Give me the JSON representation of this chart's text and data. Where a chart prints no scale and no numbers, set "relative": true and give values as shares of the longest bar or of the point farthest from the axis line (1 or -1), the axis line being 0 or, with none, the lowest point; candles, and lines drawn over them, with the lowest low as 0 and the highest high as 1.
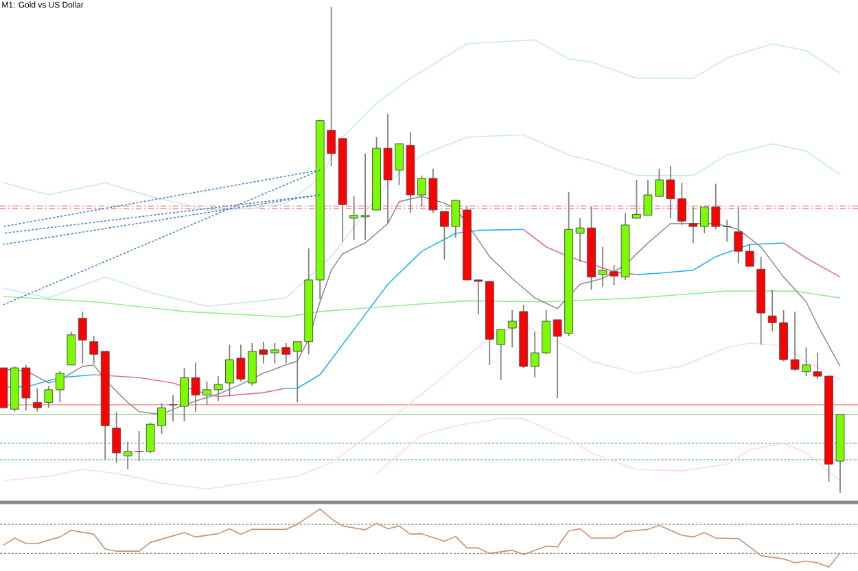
{
  "chart_data": [
    {
      "type": "candlestick",
      "title": "M1: Gold vs US Dollar",
      "relative": true,
      "categories": [
        null,
        null,
        null,
        null,
        null,
        null,
        null,
        null,
        null,
        null,
        null,
        null,
        null,
        null,
        null,
        null,
        null,
        null,
        null,
        null,
        null,
        null,
        null,
        null,
        null,
        null,
        null,
        null,
        null,
        null,
        null,
        null,
        null,
        null,
        null,
        null,
        null,
        null,
        null,
        null,
        null,
        null,
        null,
        null,
        null,
        null,
        null,
        null,
        null,
        null,
        null,
        null,
        null,
        null,
        null,
        null,
        null,
        null,
        null,
        null,
        null,
        null,
        null,
        null,
        null,
        null,
        null,
        null,
        null,
        null,
        null,
        null,
        null,
        null,
        null
      ],
      "ohlc": [
        [
          0.257,
          0.257,
          0.175,
          0.175
        ],
        [
          0.172,
          0.26,
          0.167,
          0.257
        ],
        [
          0.257,
          0.263,
          0.169,
          0.195
        ],
        [
          0.186,
          0.215,
          0.167,
          0.175
        ],
        [
          0.186,
          0.22,
          0.175,
          0.212
        ],
        [
          0.212,
          0.251,
          0.186,
          0.246
        ],
        [
          0.263,
          0.331,
          0.263,
          0.325
        ],
        [
          0.359,
          0.373,
          0.266,
          0.314
        ],
        [
          0.311,
          0.322,
          0.266,
          0.285
        ],
        [
          0.291,
          0.291,
          0.068,
          0.138
        ],
        [
          0.133,
          0.167,
          0.062,
          0.082
        ],
        [
          0.076,
          0.105,
          0.048,
          0.085
        ],
        [
          0.085,
          0.127,
          0.065,
          0.085
        ],
        [
          0.085,
          0.144,
          0.082,
          0.141
        ],
        [
          0.138,
          0.184,
          0.121,
          0.175
        ],
        [
          0.181,
          0.201,
          0.147,
          0.181
        ],
        [
          0.178,
          0.257,
          0.147,
          0.237
        ],
        [
          0.237,
          0.268,
          0.167,
          0.201
        ],
        [
          0.201,
          0.229,
          0.181,
          0.212
        ],
        [
          0.212,
          0.24,
          0.189,
          0.223
        ],
        [
          0.226,
          0.305,
          0.198,
          0.274
        ],
        [
          0.277,
          0.305,
          0.229,
          0.234
        ],
        [
          0.226,
          0.308,
          0.22,
          0.291
        ],
        [
          0.294,
          0.311,
          0.266,
          0.285
        ],
        [
          0.288,
          0.308,
          0.266,
          0.294
        ],
        [
          0.299,
          0.308,
          0.266,
          0.285
        ],
        [
          0.291,
          0.311,
          0.186,
          0.311
        ],
        [
          0.311,
          0.503,
          0.285,
          0.438
        ],
        [
          0.438,
          0.766,
          0.398,
          0.766
        ],
        [
          0.746,
          1,
          0.672,
          0.698
        ],
        [
          0.729,
          0.729,
          0.517,
          0.593
        ],
        [
          0.565,
          0.61,
          0.52,
          0.571
        ],
        [
          0.568,
          0.698,
          0.52,
          0.571
        ],
        [
          0.582,
          0.732,
          0.582,
          0.709
        ],
        [
          0.709,
          0.78,
          0.554,
          0.644
        ],
        [
          0.664,
          0.718,
          0.633,
          0.718
        ],
        [
          0.715,
          0.743,
          0.576,
          0.613
        ],
        [
          0.613,
          0.653,
          0.59,
          0.647
        ],
        [
          0.647,
          0.667,
          0.576,
          0.582
        ],
        [
          0.579,
          0.579,
          0.48,
          0.548
        ],
        [
          0.548,
          0.602,
          0.525,
          0.602
        ],
        [
          0.582,
          0.59,
          0.438,
          0.438
        ],
        [
          0.438,
          0.438,
          0.367,
          0.435
        ],
        [
          0.435,
          0.435,
          0.263,
          0.316
        ],
        [
          0.305,
          0.336,
          0.232,
          0.336
        ],
        [
          0.339,
          0.376,
          0.299,
          0.353
        ],
        [
          0.373,
          0.387,
          0.257,
          0.26
        ],
        [
          0.26,
          0.331,
          0.237,
          0.288
        ],
        [
          0.288,
          0.376,
          0.285,
          0.353
        ],
        [
          0.356,
          0.356,
          0.195,
          0.322
        ],
        [
          0.328,
          0.619,
          0.322,
          0.542
        ],
        [
          0.534,
          0.565,
          0.475,
          0.545
        ],
        [
          0.545,
          0.59,
          0.418,
          0.444
        ],
        [
          0.449,
          0.506,
          0.424,
          0.458
        ],
        [
          0.455,
          0.469,
          0.427,
          0.446
        ],
        [
          0.444,
          0.576,
          0.438,
          0.551
        ],
        [
          0.565,
          0.644,
          0.565,
          0.573
        ],
        [
          0.571,
          0.644,
          0.571,
          0.613
        ],
        [
          0.61,
          0.667,
          0.61,
          0.644
        ],
        [
          0.644,
          0.672,
          0.565,
          0.605
        ],
        [
          0.605,
          0.638,
          0.551,
          0.559
        ],
        [
          0.554,
          0.588,
          0.514,
          0.548
        ],
        [
          0.548,
          0.588,
          0.534,
          0.588
        ],
        [
          0.588,
          0.636,
          0.542,
          0.548
        ],
        [
          0.548,
          0.562,
          0.517,
          0.548
        ],
        [
          0.537,
          0.588,
          0.472,
          0.497
        ],
        [
          0.497,
          0.511,
          0.466,
          0.466
        ],
        [
          0.46,
          0.486,
          0.305,
          0.37
        ],
        [
          0.364,
          0.418,
          0.333,
          0.35
        ],
        [
          0.35,
          0.376,
          0.271,
          0.274
        ],
        [
          0.274,
          0.373,
          0.251,
          0.254
        ],
        [
          0.249,
          0.299,
          0.24,
          0.263
        ],
        [
          0.249,
          0.288,
          0.234,
          0.24
        ],
        [
          0.24,
          0.24,
          0.023,
          0.059
        ],
        [
          0.065,
          0.161,
          0,
          0.161
        ]
      ],
      "series": [
        {
          "type": "line",
          "color": "#c8e8f0",
          "values": [
            0.638,
            null,
            null,
            null,
            0.613,
            null,
            null,
            null,
            null,
            0.638,
            null,
            null,
            null,
            0.61,
            null,
            null,
            null,
            null,
            0.582,
            null,
            null,
            null,
            0.585,
            null,
            null,
            0.596,
            null,
            null,
            0.647,
            null,
            0.732,
            null,
            null,
            0.802,
            null,
            null,
            0.853,
            null,
            null,
            null,
            null,
            0.924,
            null,
            null,
            null,
            null,
            null,
            0.932,
            null,
            null,
            0.893,
            null,
            0.887,
            null,
            null,
            null,
            0.853,
            null,
            null,
            null,
            null,
            0.853,
            null,
            null,
            0.895,
            null,
            null,
            null,
            0.924,
            null,
            null,
            0.91,
            null,
            null,
            0.864
          ]
        },
        {
          "type": "line",
          "color": "#c8e8f0",
          "values": [
            0.421,
            null,
            null,
            null,
            0.401,
            null,
            null,
            null,
            null,
            0.444,
            null,
            null,
            null,
            0.412,
            null,
            null,
            null,
            null,
            0.384,
            null,
            null,
            null,
            0.393,
            null,
            null,
            0.401,
            null,
            null,
            null,
            0.486,
            null,
            null,
            null,
            null,
            0.638,
            null,
            null,
            0.695,
            null,
            null,
            null,
            0.732,
            null,
            null,
            null,
            null,
            0.737,
            null,
            null,
            null,
            0.695,
            null,
            0.684,
            null,
            null,
            null,
            0.653,
            null,
            null,
            null,
            null,
            0.653,
            null,
            null,
            0.695,
            null,
            null,
            null,
            0.718,
            null,
            null,
            0.703,
            null,
            null,
            0.655
          ]
        },
        {
          "type": "line",
          "color": "#ffdada",
          "values": [
            0.025,
            null,
            null,
            null,
            0.034,
            null,
            null,
            0.048,
            null,
            null,
            0.04,
            null,
            null,
            null,
            0.02,
            null,
            null,
            null,
            0.008,
            null,
            null,
            null,
            null,
            0.025,
            null,
            null,
            0.034,
            null,
            null,
            0.062,
            null,
            null,
            null,
            null,
            0.147,
            null,
            null,
            0.203,
            null,
            null,
            null,
            0.28,
            null,
            0.322,
            null,
            null,
            0.345,
            null,
            null,
            null,
            0.299,
            null,
            0.271,
            null,
            null,
            null,
            0.246,
            null,
            null,
            null,
            0.26,
            null,
            null,
            null,
            0.299,
            null,
            0.308,
            null,
            null,
            0.302,
            null,
            0.271,
            null,
            null,
            0.232
          ]
        },
        {
          "type": "line",
          "color": "#ffdada",
          "values": [
            null,
            null,
            null,
            null,
            null,
            null,
            null,
            null,
            null,
            null,
            null,
            null,
            null,
            null,
            null,
            null,
            null,
            null,
            null,
            null,
            null,
            null,
            null,
            null,
            null,
            null,
            null,
            null,
            null,
            null,
            null,
            null,
            null,
            0.04,
            null,
            null,
            null,
            0.119,
            null,
            null,
            0.138,
            null,
            null,
            null,
            0.153,
            null,
            0.153,
            null,
            null,
            null,
            0.11,
            null,
            0.082,
            null,
            null,
            null,
            0.048,
            null,
            null,
            null,
            0.045,
            null,
            null,
            null,
            0.059,
            null,
            0.088,
            null,
            null,
            0.102,
            null,
            0.082,
            null,
            null,
            0.025
          ]
        },
        {
          "type": "line",
          "color": "#90ee90",
          "values": [
            0.404,
            null,
            null,
            null,
            null,
            null,
            null,
            null,
            0.393,
            null,
            null,
            null,
            null,
            null,
            null,
            null,
            0.373,
            null,
            null,
            null,
            null,
            null,
            null,
            null,
            null,
            0.362,
            null,
            null,
            0.373,
            null,
            null,
            null,
            null,
            null,
            null,
            null,
            0.387,
            null,
            null,
            null,
            null,
            0.395,
            null,
            null,
            null,
            null,
            null,
            null,
            0.393,
            null,
            null,
            null,
            null,
            null,
            null,
            null,
            0.401,
            null,
            null,
            null,
            null,
            null,
            null,
            null,
            0.415,
            null,
            null,
            null,
            null,
            null,
            0.415,
            null,
            null,
            null,
            0.401
          ]
        },
        {
          "type": "line",
          "color": "#1eb4f0",
          "values": [
            0.218,
            null,
            0.218,
            null,
            null,
            0.237,
            null,
            null,
            0.243,
            null,
            null,
            null,
            null,
            null,
            null,
            null,
            null,
            null,
            null,
            null,
            null,
            null,
            null,
            null,
            null,
            null,
            null,
            null,
            null,
            null,
            null,
            null,
            null,
            null,
            null,
            null,
            null,
            null,
            null,
            null,
            null,
            null,
            null,
            null,
            null,
            null,
            null,
            null,
            null,
            null,
            null,
            null,
            null,
            null,
            null,
            null,
            null,
            null,
            null,
            null,
            null,
            null,
            null,
            null,
            null,
            null,
            null,
            null,
            null,
            null,
            null,
            null,
            null,
            null,
            null
          ]
        },
        {
          "type": "line",
          "color": "#e0708e",
          "values": [
            null,
            null,
            null,
            null,
            null,
            null,
            null,
            null,
            0.243,
            null,
            null,
            null,
            0.237,
            null,
            null,
            0.226,
            null,
            null,
            0.203,
            0.198,
            null,
            null,
            null,
            0.206,
            null,
            0.215,
            null,
            null,
            null,
            null,
            null,
            null,
            null,
            null,
            null,
            null,
            null,
            null,
            null,
            null,
            null,
            null,
            null,
            null,
            null,
            null,
            null,
            null,
            null,
            null,
            null,
            null,
            null,
            null,
            null,
            null,
            null,
            null,
            null,
            null,
            null,
            null,
            null,
            null,
            null,
            null,
            null,
            null,
            null,
            null,
            null,
            null,
            null,
            null,
            null
          ]
        },
        {
          "type": "line",
          "color": "#1eb4f0",
          "values": [
            null,
            null,
            null,
            null,
            null,
            null,
            null,
            null,
            null,
            null,
            null,
            null,
            null,
            null,
            null,
            null,
            null,
            null,
            null,
            null,
            null,
            null,
            null,
            null,
            null,
            0.215,
            0.215,
            null,
            0.243,
            null,
            null,
            0.336,
            null,
            null,
            0.429,
            null,
            null,
            0.497,
            null,
            null,
            0.534,
            null,
            0.54,
            null,
            null,
            null,
            0.542,
            null,
            null,
            null,
            null,
            null,
            null,
            null,
            null,
            null,
            null,
            null,
            null,
            null,
            null,
            null,
            null,
            null,
            null,
            null,
            null,
            null,
            null,
            null,
            null,
            null,
            null,
            null,
            null
          ]
        },
        {
          "type": "line",
          "color": "#e0708e",
          "values": [
            null,
            null,
            null,
            null,
            null,
            null,
            null,
            null,
            null,
            null,
            null,
            null,
            null,
            null,
            null,
            null,
            null,
            null,
            null,
            null,
            null,
            null,
            null,
            null,
            null,
            null,
            null,
            null,
            null,
            null,
            null,
            null,
            null,
            null,
            null,
            null,
            null,
            null,
            null,
            null,
            null,
            null,
            null,
            null,
            null,
            null,
            0.542,
            null,
            0.506,
            null,
            0.486,
            null,
            null,
            null,
            0.455,
            null,
            0.449,
            null,
            null,
            null,
            null,
            null,
            null,
            null,
            null,
            null,
            null,
            null,
            null,
            null,
            null,
            null,
            null,
            null,
            null
          ]
        },
        {
          "type": "line",
          "color": "#1eb4f0",
          "values": [
            null,
            null,
            null,
            null,
            null,
            null,
            null,
            null,
            null,
            null,
            null,
            null,
            null,
            null,
            null,
            null,
            null,
            null,
            null,
            null,
            null,
            null,
            null,
            null,
            null,
            null,
            null,
            null,
            null,
            null,
            null,
            null,
            null,
            null,
            null,
            null,
            null,
            null,
            null,
            null,
            null,
            null,
            null,
            null,
            null,
            null,
            null,
            null,
            null,
            null,
            null,
            null,
            null,
            null,
            null,
            null,
            0.449,
            null,
            0.452,
            null,
            null,
            0.458,
            null,
            0.486,
            null,
            null,
            0.511,
            null,
            null,
            0.514,
            null,
            null,
            null,
            null,
            null
          ]
        },
        {
          "type": "line",
          "color": "#e0708e",
          "values": [
            null,
            null,
            null,
            null,
            null,
            null,
            null,
            null,
            null,
            null,
            null,
            null,
            null,
            null,
            null,
            null,
            null,
            null,
            null,
            null,
            null,
            null,
            null,
            null,
            null,
            null,
            null,
            null,
            null,
            null,
            null,
            null,
            null,
            null,
            null,
            null,
            null,
            null,
            null,
            null,
            null,
            null,
            null,
            null,
            null,
            null,
            null,
            null,
            null,
            null,
            null,
            null,
            null,
            null,
            null,
            null,
            null,
            null,
            null,
            null,
            null,
            null,
            null,
            null,
            null,
            null,
            null,
            null,
            null,
            0.514,
            null,
            0.483,
            null,
            null,
            0.444
          ]
        },
        {
          "type": "line",
          "color": "#909090",
          "values": [
            0.254,
            null,
            0.251,
            null,
            0.226,
            0.232,
            null,
            0.26,
            0.263,
            0.232,
            null,
            0.186,
            0.167,
            null,
            0.161,
            0.172,
            null,
            0.189,
            null,
            0.203,
            null,
            0.223,
            null,
            0.246,
            null,
            0.263,
            0.271,
            0.316,
            0.393,
            0.458,
            0.492,
            null,
            0.514,
            null,
            0.554,
            0.599,
            null,
            0.61,
            null,
            0.596,
            0.585,
            0.554,
            null,
            0.486,
            null,
            0.441,
            null,
            0.401,
            null,
            0.379,
            null,
            0.429,
            null,
            0.441,
            null,
            0.469,
            null,
            0.514,
            null,
            0.554,
            null,
            0.554,
            null,
            0.554,
            null,
            0.542,
            null,
            0.506,
            null,
            0.444,
            null,
            0.393,
            0.345,
            null,
            0.26
          ]
        },
        {
          "type": "line",
          "color": "#4a86c8",
          "line_style": "dotted",
          "values": [
            0.534,
            null,
            null,
            null,
            null,
            null,
            null,
            null,
            null,
            null,
            null,
            null,
            null,
            null,
            null,
            null,
            null,
            null,
            null,
            null,
            null,
            null,
            null,
            null,
            null,
            null,
            null,
            null,
            0.613,
            null,
            null,
            null,
            null,
            null,
            null,
            null,
            null,
            null,
            null,
            null,
            null,
            null,
            null,
            null,
            null,
            null,
            null,
            null,
            null,
            null,
            null,
            null,
            null,
            null,
            null,
            null,
            null,
            null,
            null,
            null,
            null,
            null,
            null,
            null,
            null,
            null,
            null,
            null,
            null,
            null,
            null,
            null,
            null,
            null,
            null
          ]
        },
        {
          "type": "line",
          "color": "#4a86c8",
          "line_style": "dotted",
          "values": [
            0.511,
            null,
            null,
            null,
            null,
            null,
            null,
            null,
            null,
            null,
            null,
            null,
            null,
            null,
            null,
            null,
            null,
            null,
            null,
            null,
            null,
            null,
            null,
            null,
            null,
            null,
            null,
            null,
            0.613,
            null,
            null,
            null,
            null,
            null,
            null,
            null,
            null,
            null,
            null,
            null,
            null,
            null,
            null,
            null,
            null,
            null,
            null,
            null,
            null,
            null,
            null,
            null,
            null,
            null,
            null,
            null,
            null,
            null,
            null,
            null,
            null,
            null,
            null,
            null,
            null,
            null,
            null,
            null,
            null,
            null,
            null,
            null,
            null,
            null,
            null
          ]
        },
        {
          "type": "line",
          "color": "#4a86c8",
          "line_style": "dotted",
          "values": [
            0.548,
            null,
            null,
            null,
            null,
            null,
            null,
            null,
            null,
            null,
            null,
            null,
            null,
            null,
            null,
            null,
            null,
            null,
            null,
            null,
            null,
            null,
            null,
            null,
            null,
            null,
            null,
            null,
            0.664,
            null,
            null,
            null,
            null,
            null,
            null,
            null,
            null,
            null,
            null,
            null,
            null,
            null,
            null,
            null,
            null,
            null,
            null,
            null,
            null,
            null,
            null,
            null,
            null,
            null,
            null,
            null,
            null,
            null,
            null,
            null,
            null,
            null,
            null,
            null,
            null,
            null,
            null,
            null,
            null,
            null,
            null,
            null,
            null,
            null,
            null
          ]
        },
        {
          "type": "line",
          "color": "#4a86c8",
          "line_style": "dotted",
          "values": [
            0.387,
            null,
            null,
            null,
            null,
            null,
            null,
            null,
            null,
            null,
            null,
            null,
            null,
            null,
            null,
            null,
            null,
            null,
            null,
            null,
            null,
            null,
            null,
            null,
            null,
            null,
            null,
            null,
            0.664,
            null,
            null,
            null,
            null,
            null,
            null,
            null,
            null,
            null,
            null,
            null,
            null,
            null,
            null,
            null,
            null,
            null,
            null,
            null,
            null,
            null,
            null,
            null,
            null,
            null,
            null,
            null,
            null,
            null,
            null,
            null,
            null,
            null,
            null,
            null,
            null,
            null,
            null,
            null,
            null,
            null,
            null,
            null,
            null,
            null,
            null
          ]
        }
      ],
      "ref_lines": [
        {
          "axis": "y",
          "value": 0.59,
          "color": "#ff9090",
          "line_style": "dashed"
        },
        {
          "axis": "y",
          "value": 0.585,
          "color": "#ff9090",
          "line_style": "dashed"
        },
        {
          "axis": "y",
          "value": 0.181,
          "color": "#f08080",
          "line_style": "solid"
        },
        {
          "axis": "y",
          "value": 0.161,
          "color": "#99cc99",
          "line_style": "solid"
        },
        {
          "axis": "y",
          "value": 0.102,
          "color": "#70b4c0",
          "line_style": "dotted"
        },
        {
          "axis": "y",
          "value": 0.068,
          "color": "#70b4c0",
          "line_style": "dotted"
        }
      ]
    },
    {
      "type": "line",
      "relative": true,
      "categories": [
        null,
        null,
        null,
        null,
        null,
        null,
        null,
        null,
        null,
        null,
        null,
        null,
        null,
        null,
        null,
        null,
        null,
        null,
        null,
        null,
        null,
        null,
        null,
        null,
        null,
        null,
        null,
        null,
        null,
        null,
        null,
        null,
        null,
        null,
        null,
        null,
        null,
        null,
        null,
        null,
        null,
        null,
        null,
        null,
        null,
        null,
        null,
        null,
        null,
        null,
        null,
        null,
        null,
        null,
        null,
        null,
        null,
        null,
        null,
        null,
        null,
        null,
        null,
        null,
        null,
        null,
        null,
        null,
        null,
        null,
        null,
        null,
        null,
        null,
        null
      ],
      "series": [
        {
          "color": "#c89070",
          "values": [
            0.377,
            0.5,
            0.406,
            0.406,
            null,
            0.519,
            0.632,
            null,
            0.566,
            0.311,
            0.274,
            null,
            0.274,
            0.425,
            0.481,
            null,
            0.594,
            0.519,
            null,
            0.575,
            0.66,
            0.566,
            0.651,
            null,
            null,
            0.651,
            0.736,
            null,
            1,
            0.83,
            0.708,
            null,
            0.642,
            0.755,
            0.66,
            0.708,
            0.566,
            0.575,
            null,
            0.443,
            0.528,
            0.33,
            0.33,
            0.236,
            null,
            0.292,
            0.217,
            null,
            0.358,
            0.349,
            0.623,
            0.66,
            0.5,
            null,
            0.5,
            0.613,
            null,
            0.651,
            0.717,
            null,
            0.547,
            0.519,
            0.594,
            0.5,
            null,
            0.491,
            0.349,
            0.198,
            null,
            0.142,
            0.075,
            0.104,
            0.075,
            0,
            0.245
          ]
        }
      ],
      "ref_lines": [
        {
          "axis": "y",
          "value": 0.736,
          "color": "#909090",
          "line_style": "dotted"
        },
        {
          "axis": "y",
          "value": 0.236,
          "color": "#909090",
          "line_style": "dotted"
        }
      ]
    }
  ]
}
